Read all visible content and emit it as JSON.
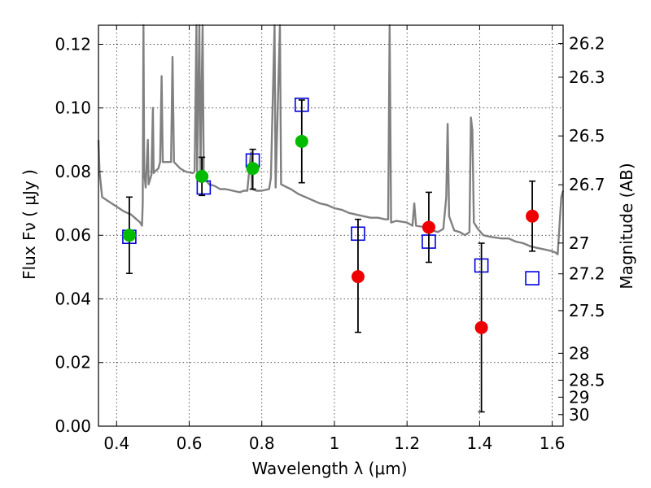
{
  "chart_data": {
    "type": "scatter",
    "xlabel": "Wavelength  λ (μm)",
    "ylabel": "Flux  Fν  ( μJy )",
    "ylabel_right": "Magnitude (AB)",
    "xlim": [
      0.35,
      1.63
    ],
    "ylim": [
      0.0,
      0.126
    ],
    "grid": true,
    "x_ticks": [
      {
        "value": 0.4,
        "label": "0.4"
      },
      {
        "value": 0.6,
        "label": "0.6"
      },
      {
        "value": 0.8,
        "label": "0.8"
      },
      {
        "value": 1.0,
        "label": "1"
      },
      {
        "value": 1.2,
        "label": "1.2"
      },
      {
        "value": 1.4,
        "label": "1.4"
      },
      {
        "value": 1.6,
        "label": "1.6"
      }
    ],
    "y_ticks": [
      {
        "value": 0.0,
        "label": "0.00"
      },
      {
        "value": 0.02,
        "label": "0.02"
      },
      {
        "value": 0.04,
        "label": "0.04"
      },
      {
        "value": 0.06,
        "label": "0.06"
      },
      {
        "value": 0.08,
        "label": "0.08"
      },
      {
        "value": 0.1,
        "label": "0.10"
      },
      {
        "value": 0.12,
        "label": "0.12"
      }
    ],
    "right_ticks": [
      {
        "mag": 26.2,
        "label": "26.2"
      },
      {
        "mag": 26.3,
        "label": "26.3"
      },
      {
        "mag": 26.5,
        "label": "26.5"
      },
      {
        "mag": 26.7,
        "label": "26.7"
      },
      {
        "mag": 27.0,
        "label": "27"
      },
      {
        "mag": 27.2,
        "label": "27.2"
      },
      {
        "mag": 27.5,
        "label": "27.5"
      },
      {
        "mag": 28.0,
        "label": "28"
      },
      {
        "mag": 28.5,
        "label": "28.5"
      },
      {
        "mag": 29.0,
        "label": "29"
      },
      {
        "mag": 30.0,
        "label": "30"
      }
    ],
    "colors": {
      "model": "#808080",
      "green": "#00bb00",
      "red": "#ee0000",
      "model_box": "#0000dd",
      "errorbar": "#000000"
    },
    "model_photometry": [
      {
        "x": 0.435,
        "y": 0.0595
      },
      {
        "x": 0.64,
        "y": 0.075
      },
      {
        "x": 0.775,
        "y": 0.0835
      },
      {
        "x": 0.91,
        "y": 0.101
      },
      {
        "x": 1.065,
        "y": 0.0605
      },
      {
        "x": 1.26,
        "y": 0.058
      },
      {
        "x": 1.405,
        "y": 0.0505
      },
      {
        "x": 1.545,
        "y": 0.0465
      }
    ],
    "observed": [
      {
        "x": 0.435,
        "y": 0.06,
        "err_low": 0.048,
        "err_high": 0.072,
        "color": "green"
      },
      {
        "x": 0.635,
        "y": 0.0785,
        "err_low": 0.0725,
        "err_high": 0.0845,
        "color": "green"
      },
      {
        "x": 0.775,
        "y": 0.081,
        "err_low": 0.0745,
        "err_high": 0.087,
        "color": "green"
      },
      {
        "x": 0.91,
        "y": 0.0895,
        "err_low": 0.0765,
        "err_high": 0.1025,
        "color": "green"
      },
      {
        "x": 1.065,
        "y": 0.047,
        "err_low": 0.0295,
        "err_high": 0.065,
        "color": "red"
      },
      {
        "x": 1.26,
        "y": 0.0625,
        "err_low": 0.0515,
        "err_high": 0.0735,
        "color": "red"
      },
      {
        "x": 1.405,
        "y": 0.031,
        "err_low": 0.0045,
        "err_high": 0.0575,
        "color": "red"
      },
      {
        "x": 1.545,
        "y": 0.066,
        "err_low": 0.055,
        "err_high": 0.077,
        "color": "red"
      }
    ],
    "model_spectrum": [
      [
        0.35,
        0.09
      ],
      [
        0.353,
        0.08
      ],
      [
        0.36,
        0.072
      ],
      [
        0.38,
        0.0705
      ],
      [
        0.4,
        0.069
      ],
      [
        0.42,
        0.0675
      ],
      [
        0.44,
        0.0665
      ],
      [
        0.455,
        0.065
      ],
      [
        0.465,
        0.064
      ],
      [
        0.47,
        0.063
      ],
      [
        0.472,
        0.07
      ],
      [
        0.474,
        0.13
      ],
      [
        0.476,
        0.08
      ],
      [
        0.48,
        0.075
      ],
      [
        0.486,
        0.09
      ],
      [
        0.488,
        0.076
      ],
      [
        0.496,
        0.079
      ],
      [
        0.5,
        0.1
      ],
      [
        0.502,
        0.0795
      ],
      [
        0.505,
        0.08
      ],
      [
        0.515,
        0.081
      ],
      [
        0.52,
        0.083
      ],
      [
        0.524,
        0.11
      ],
      [
        0.527,
        0.083
      ],
      [
        0.54,
        0.083
      ],
      [
        0.55,
        0.083
      ],
      [
        0.554,
        0.116
      ],
      [
        0.558,
        0.083
      ],
      [
        0.575,
        0.081
      ],
      [
        0.59,
        0.08
      ],
      [
        0.61,
        0.0795
      ],
      [
        0.615,
        0.08
      ],
      [
        0.62,
        0.13
      ],
      [
        0.622,
        0.08
      ],
      [
        0.628,
        0.13
      ],
      [
        0.631,
        0.08
      ],
      [
        0.637,
        0.13
      ],
      [
        0.64,
        0.078
      ],
      [
        0.655,
        0.076
      ],
      [
        0.67,
        0.0755
      ],
      [
        0.685,
        0.0745
      ],
      [
        0.7,
        0.0745
      ],
      [
        0.72,
        0.074
      ],
      [
        0.74,
        0.0735
      ],
      [
        0.75,
        0.074
      ],
      [
        0.76,
        0.074
      ],
      [
        0.77,
        0.086
      ],
      [
        0.773,
        0.0745
      ],
      [
        0.785,
        0.074
      ],
      [
        0.8,
        0.074
      ],
      [
        0.82,
        0.0745
      ],
      [
        0.825,
        0.078
      ],
      [
        0.835,
        0.13
      ],
      [
        0.838,
        0.075
      ],
      [
        0.85,
        0.13
      ],
      [
        0.853,
        0.076
      ],
      [
        0.87,
        0.075
      ],
      [
        0.88,
        0.0745
      ],
      [
        0.9,
        0.073
      ],
      [
        0.92,
        0.072
      ],
      [
        0.94,
        0.071
      ],
      [
        0.96,
        0.07
      ],
      [
        0.98,
        0.0695
      ],
      [
        1.0,
        0.0685
      ],
      [
        1.02,
        0.068
      ],
      [
        1.04,
        0.067
      ],
      [
        1.06,
        0.0665
      ],
      [
        1.08,
        0.066
      ],
      [
        1.1,
        0.0655
      ],
      [
        1.12,
        0.0655
      ],
      [
        1.14,
        0.065
      ],
      [
        1.148,
        0.065
      ],
      [
        1.152,
        0.13
      ],
      [
        1.156,
        0.064
      ],
      [
        1.17,
        0.0645
      ],
      [
        1.2,
        0.064
      ],
      [
        1.215,
        0.063
      ],
      [
        1.22,
        0.07
      ],
      [
        1.225,
        0.063
      ],
      [
        1.25,
        0.0625
      ],
      [
        1.27,
        0.0615
      ],
      [
        1.285,
        0.061
      ],
      [
        1.3,
        0.062
      ],
      [
        1.308,
        0.072
      ],
      [
        1.312,
        0.095
      ],
      [
        1.316,
        0.066
      ],
      [
        1.33,
        0.0615
      ],
      [
        1.345,
        0.061
      ],
      [
        1.36,
        0.06
      ],
      [
        1.372,
        0.061
      ],
      [
        1.376,
        0.097
      ],
      [
        1.38,
        0.093
      ],
      [
        1.384,
        0.064
      ],
      [
        1.395,
        0.062
      ],
      [
        1.41,
        0.06
      ],
      [
        1.43,
        0.0595
      ],
      [
        1.46,
        0.059
      ],
      [
        1.48,
        0.059
      ],
      [
        1.5,
        0.058
      ],
      [
        1.52,
        0.0575
      ],
      [
        1.54,
        0.0565
      ],
      [
        1.56,
        0.056
      ],
      [
        1.58,
        0.0555
      ],
      [
        1.6,
        0.055
      ],
      [
        1.61,
        0.0545
      ],
      [
        1.615,
        0.054
      ],
      [
        1.625,
        0.072
      ],
      [
        1.63,
        0.074
      ]
    ]
  }
}
